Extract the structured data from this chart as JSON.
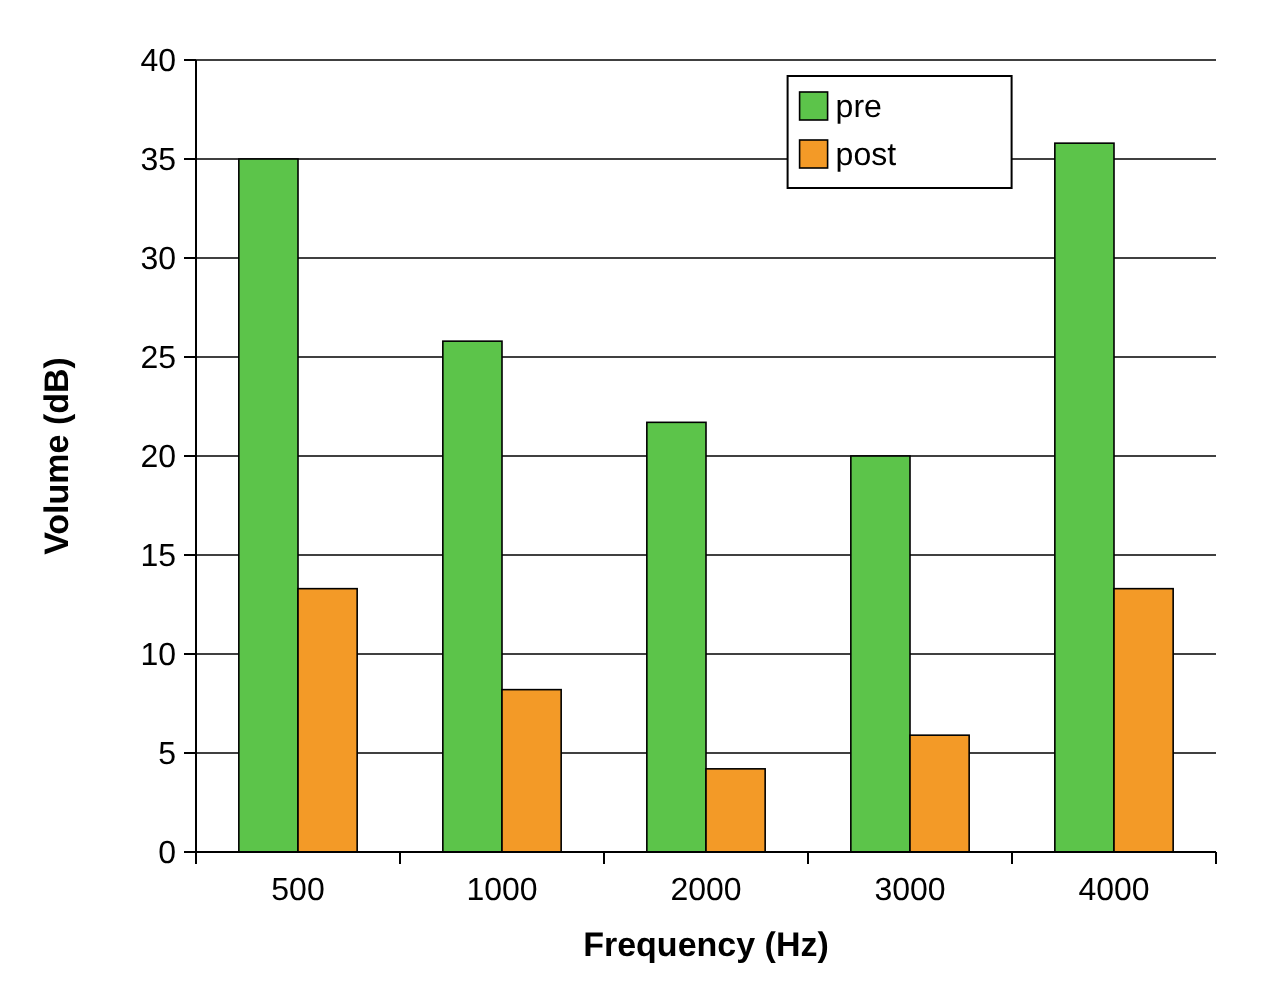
{
  "chart_data": {
    "type": "bar",
    "xlabel": "Frequency (Hz)",
    "ylabel": "Volume (dB)",
    "categories": [
      "500",
      "1000",
      "2000",
      "3000",
      "4000"
    ],
    "series": [
      {
        "name": "pre",
        "color": "#5cc44a",
        "values": [
          35,
          25.8,
          21.7,
          20,
          35.8
        ]
      },
      {
        "name": "post",
        "color": "#f39a27",
        "values": [
          13.3,
          8.2,
          4.2,
          5.9,
          13.3
        ]
      }
    ],
    "ylim": [
      0,
      40
    ],
    "yticks": [
      0,
      5,
      10,
      15,
      20,
      25,
      30,
      35,
      40
    ],
    "grid": "y",
    "legend": "top right"
  }
}
